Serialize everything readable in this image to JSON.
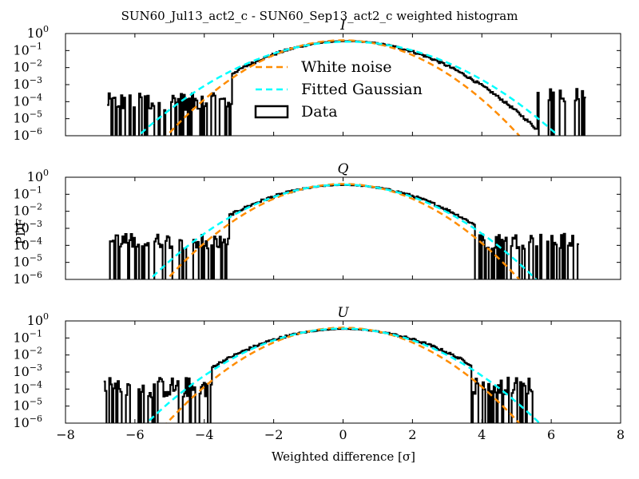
{
  "figure": {
    "title": "SUN60_Jul13_act2_c - SUN60_Sep13_act2_c weighted histogram",
    "xlabel": "Weighted difference [σ]",
    "ylabel": "PDF"
  },
  "legend": [
    {
      "label": "White noise",
      "color": "#ff8c00",
      "style": "dashed"
    },
    {
      "label": "Fitted Gaussian",
      "color": "#00ffff",
      "style": "dashed"
    },
    {
      "label": "Data",
      "color": "#000000",
      "style": "box"
    }
  ],
  "chart_data": [
    {
      "type": "line",
      "title": "I",
      "xlim": [
        -8,
        8
      ],
      "ylim": [
        1e-06,
        1
      ],
      "yscale": "log",
      "xticks": [
        "",
        "",
        "",
        "",
        "",
        "",
        "",
        "",
        ""
      ],
      "yticks": [
        "10^0",
        "10^-1",
        "10^-2",
        "10^-3",
        "10^-4",
        "10^-5",
        "10^-6"
      ],
      "legend": "center",
      "series": [
        {
          "name": "White noise",
          "kind": "gaussian",
          "mean": 0.0,
          "sigma": 1.0
        },
        {
          "name": "Fitted Gaussian",
          "kind": "gaussian",
          "mean": 0.15,
          "sigma": 1.2
        },
        {
          "name": "Data",
          "kind": "histogram",
          "core_mean": 0.1,
          "core_sigma": 1.12,
          "tail_left": -3.2,
          "tail_right": 5.6,
          "left_extent": -6.8,
          "right_extent": 7.0,
          "left_level": [
            -4.5,
            -3.5
          ],
          "right_level": [
            -4.0,
            -3.2
          ]
        }
      ]
    },
    {
      "type": "line",
      "title": "Q",
      "xlim": [
        -8,
        8
      ],
      "ylim": [
        1e-06,
        1
      ],
      "yscale": "log",
      "xticks": [
        "",
        "",
        "",
        "",
        "",
        "",
        "",
        "",
        ""
      ],
      "yticks": [
        "10^0",
        "10^-1",
        "10^-2",
        "10^-3",
        "10^-4",
        "10^-5",
        "10^-6"
      ],
      "series": [
        {
          "name": "White noise",
          "kind": "gaussian",
          "mean": 0.0,
          "sigma": 1.0
        },
        {
          "name": "Fitted Gaussian",
          "kind": "gaussian",
          "mean": 0.0,
          "sigma": 1.1
        },
        {
          "name": "Data",
          "kind": "histogram",
          "core_mean": 0.0,
          "core_sigma": 1.15,
          "tail_left": -3.3,
          "tail_right": 3.8,
          "left_extent": -6.8,
          "right_extent": 6.8,
          "left_level": [
            -4.2,
            -3.3
          ],
          "right_level": [
            -4.2,
            -3.3
          ]
        }
      ]
    },
    {
      "type": "line",
      "title": "U",
      "xlim": [
        -8,
        8
      ],
      "ylim": [
        1e-06,
        1
      ],
      "yscale": "log",
      "xticks": [
        "−8",
        "−6",
        "−4",
        "−2",
        "0",
        "2",
        "4",
        "6",
        "8"
      ],
      "yticks": [
        "10^0",
        "10^-1",
        "10^-2",
        "10^-3",
        "10^-4",
        "10^-5",
        "10^-6"
      ],
      "series": [
        {
          "name": "White noise",
          "kind": "gaussian",
          "mean": 0.0,
          "sigma": 1.0
        },
        {
          "name": "Fitted Gaussian",
          "kind": "gaussian",
          "mean": 0.0,
          "sigma": 1.12
        },
        {
          "name": "Data",
          "kind": "histogram",
          "core_mean": 0.0,
          "core_sigma": 1.18,
          "tail_left": -3.8,
          "tail_right": 3.7,
          "left_extent": -6.9,
          "right_extent": 5.5,
          "left_level": [
            -4.5,
            -3.3
          ],
          "right_level": [
            -4.3,
            -3.3
          ]
        }
      ]
    }
  ]
}
